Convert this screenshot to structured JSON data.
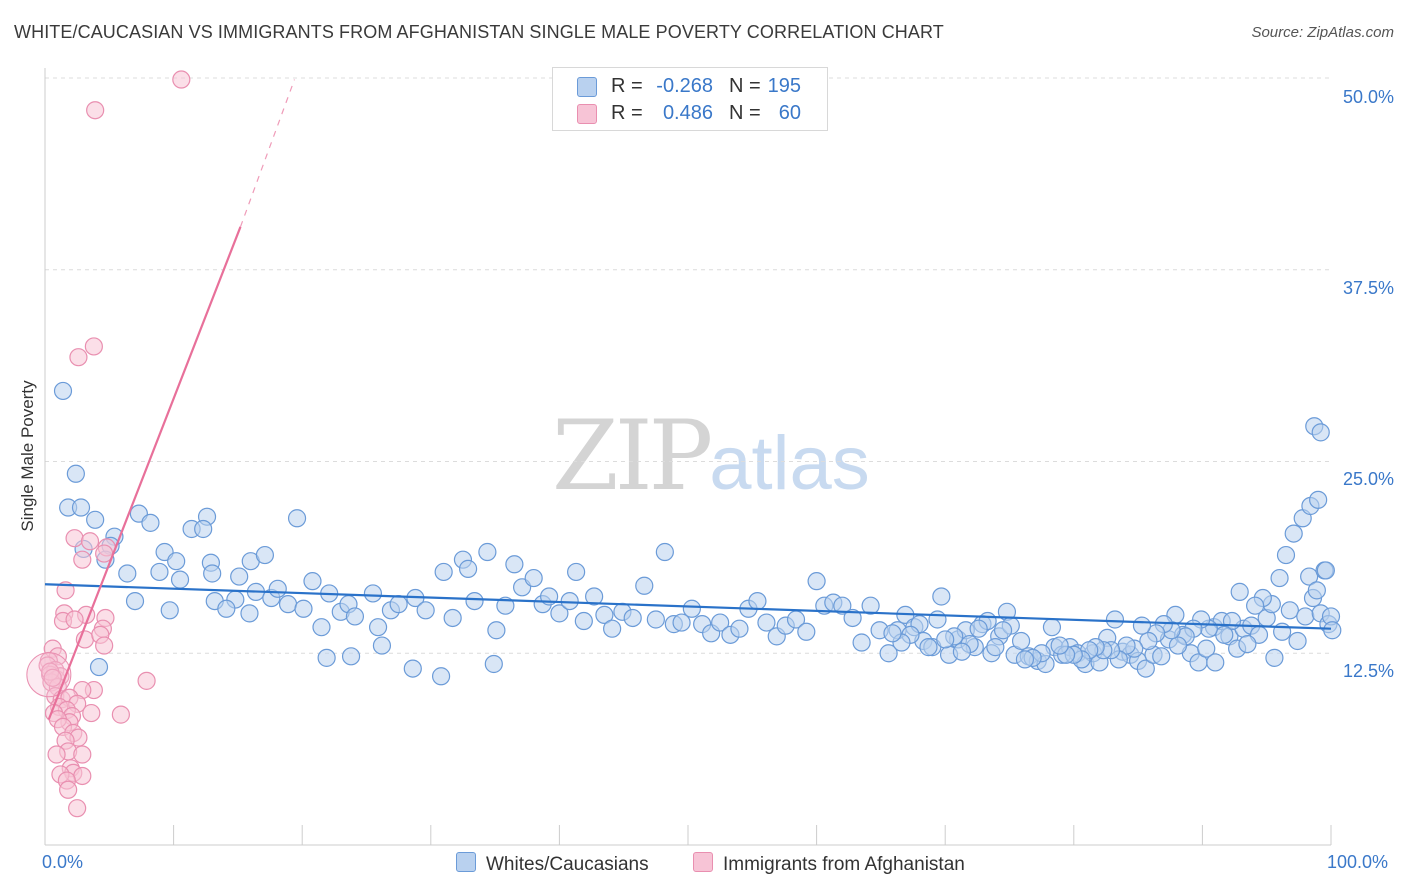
{
  "title": "WHITE/CAUCASIAN VS IMMIGRANTS FROM AFGHANISTAN SINGLE MALE POVERTY CORRELATION CHART",
  "source": "Source: ZipAtlas.com",
  "watermark": {
    "zip": "ZIP",
    "atlas": "atlas"
  },
  "colors": {
    "blue": "#6b9bd8",
    "blue_fill": "#b9d1ef",
    "blue_line": "#2a72c9",
    "pink": "#e98fb0",
    "pink_fill": "#f7c4d6",
    "pink_line": "#e8709a",
    "tick_text": "#3a78c9"
  },
  "legend": {
    "rows": [
      {
        "r_label": "R =",
        "r_value": "-0.268",
        "n_label": "N =",
        "n_value": "195"
      },
      {
        "r_label": "R =",
        "r_value": "0.486",
        "n_label": "N =",
        "n_value": "60"
      }
    ]
  },
  "chart_data": {
    "type": "scatter",
    "title": "WHITE/CAUCASIAN VS IMMIGRANTS FROM AFGHANISTAN SINGLE MALE POVERTY CORRELATION CHART",
    "xlabel": "",
    "ylabel": "Single Male Poverty",
    "xlim": [
      0,
      100
    ],
    "ylim": [
      0,
      50
    ],
    "x_tick_labels": [
      "0.0%",
      "100.0%"
    ],
    "y_ticks": [
      12.5,
      25.0,
      37.5,
      50.0
    ],
    "y_tick_labels": [
      "12.5%",
      "25.0%",
      "37.5%",
      "50.0%"
    ],
    "grid": "horizontal dashed",
    "legend_position": "bottom",
    "series": [
      {
        "name": "Whites/Caucasians",
        "color": "#6b9bd8",
        "trend": {
          "x": [
            0,
            100
          ],
          "y": [
            17.0,
            14.1
          ]
        },
        "points": [
          [
            1.4,
            29.6
          ],
          [
            2.4,
            24.2
          ],
          [
            1.8,
            22.0
          ],
          [
            2.8,
            22.0
          ],
          [
            3.9,
            21.2
          ],
          [
            5.4,
            20.1
          ],
          [
            7.3,
            21.6
          ],
          [
            8.2,
            21.0
          ],
          [
            3.0,
            19.3
          ],
          [
            5.1,
            19.5
          ],
          [
            4.7,
            18.6
          ],
          [
            9.3,
            19.1
          ],
          [
            10.2,
            18.5
          ],
          [
            11.4,
            20.6
          ],
          [
            12.6,
            21.4
          ],
          [
            12.9,
            18.4
          ],
          [
            6.4,
            17.7
          ],
          [
            8.9,
            17.8
          ],
          [
            10.5,
            17.3
          ],
          [
            13.0,
            17.7
          ],
          [
            15.1,
            17.5
          ],
          [
            16.0,
            18.5
          ],
          [
            14.8,
            16.0
          ],
          [
            7.0,
            15.9
          ],
          [
            9.7,
            15.3
          ],
          [
            13.2,
            15.9
          ],
          [
            14.1,
            15.4
          ],
          [
            15.9,
            15.1
          ],
          [
            16.4,
            16.5
          ],
          [
            17.1,
            18.9
          ],
          [
            17.6,
            16.1
          ],
          [
            18.1,
            16.7
          ],
          [
            18.9,
            15.7
          ],
          [
            20.1,
            15.4
          ],
          [
            20.8,
            17.2
          ],
          [
            21.5,
            14.2
          ],
          [
            22.1,
            16.4
          ],
          [
            23.0,
            15.2
          ],
          [
            23.6,
            15.7
          ],
          [
            24.1,
            14.9
          ],
          [
            25.5,
            16.4
          ],
          [
            25.9,
            14.2
          ],
          [
            26.9,
            15.3
          ],
          [
            27.5,
            15.7
          ],
          [
            28.8,
            16.1
          ],
          [
            29.6,
            15.3
          ],
          [
            31.0,
            17.8
          ],
          [
            31.7,
            14.8
          ],
          [
            32.5,
            18.6
          ],
          [
            33.4,
            15.9
          ],
          [
            34.4,
            19.1
          ],
          [
            35.1,
            14.0
          ],
          [
            35.8,
            15.6
          ],
          [
            36.5,
            18.3
          ],
          [
            37.1,
            16.8
          ],
          [
            38.0,
            17.4
          ],
          [
            38.7,
            15.7
          ],
          [
            39.2,
            16.2
          ],
          [
            40.0,
            15.1
          ],
          [
            40.8,
            15.9
          ],
          [
            41.3,
            17.8
          ],
          [
            41.9,
            14.6
          ],
          [
            42.7,
            16.2
          ],
          [
            43.5,
            15.0
          ],
          [
            44.1,
            14.1
          ],
          [
            44.9,
            15.2
          ],
          [
            45.7,
            14.8
          ],
          [
            46.6,
            16.9
          ],
          [
            47.5,
            14.7
          ],
          [
            48.2,
            19.1
          ],
          [
            48.9,
            14.4
          ],
          [
            49.5,
            14.5
          ],
          [
            50.3,
            15.4
          ],
          [
            51.1,
            14.4
          ],
          [
            51.8,
            13.8
          ],
          [
            52.5,
            14.5
          ],
          [
            53.3,
            13.7
          ],
          [
            54.0,
            14.1
          ],
          [
            54.7,
            15.4
          ],
          [
            55.4,
            15.9
          ],
          [
            56.1,
            14.5
          ],
          [
            56.9,
            13.6
          ],
          [
            57.6,
            14.3
          ],
          [
            58.4,
            14.7
          ],
          [
            59.2,
            13.9
          ],
          [
            60.0,
            17.2
          ],
          [
            60.6,
            15.6
          ],
          [
            61.3,
            15.8
          ],
          [
            62.0,
            15.6
          ],
          [
            62.8,
            14.8
          ],
          [
            63.5,
            13.2
          ],
          [
            64.2,
            15.6
          ],
          [
            64.9,
            14.0
          ],
          [
            65.6,
            12.5
          ],
          [
            66.3,
            14.0
          ],
          [
            66.9,
            15.0
          ],
          [
            67.6,
            14.2
          ],
          [
            68.3,
            13.3
          ],
          [
            69.0,
            12.9
          ],
          [
            69.7,
            16.2
          ],
          [
            70.3,
            12.4
          ],
          [
            71.0,
            13.4
          ],
          [
            71.6,
            14.0
          ],
          [
            72.3,
            12.9
          ],
          [
            72.9,
            14.4
          ],
          [
            73.6,
            12.5
          ],
          [
            74.2,
            13.6
          ],
          [
            74.8,
            15.2
          ],
          [
            75.4,
            12.4
          ],
          [
            75.9,
            13.3
          ],
          [
            76.5,
            12.3
          ],
          [
            77.2,
            12.0
          ],
          [
            77.8,
            11.8
          ],
          [
            78.5,
            12.9
          ],
          [
            79.1,
            12.4
          ],
          [
            79.7,
            12.9
          ],
          [
            80.3,
            12.5
          ],
          [
            80.9,
            11.8
          ],
          [
            81.5,
            12.5
          ],
          [
            82.0,
            11.9
          ],
          [
            82.6,
            13.5
          ],
          [
            83.2,
            14.7
          ],
          [
            83.8,
            12.6
          ],
          [
            84.4,
            12.4
          ],
          [
            85.0,
            12.0
          ],
          [
            85.6,
            11.5
          ],
          [
            86.2,
            12.4
          ],
          [
            86.8,
            12.3
          ],
          [
            87.4,
            13.4
          ],
          [
            87.9,
            15.0
          ],
          [
            88.5,
            13.7
          ],
          [
            89.1,
            12.5
          ],
          [
            89.7,
            11.9
          ],
          [
            90.3,
            12.8
          ],
          [
            90.9,
            14.2
          ],
          [
            91.5,
            14.6
          ],
          [
            92.1,
            13.6
          ],
          [
            92.7,
            12.8
          ],
          [
            93.2,
            14.1
          ],
          [
            93.8,
            14.3
          ],
          [
            94.4,
            13.7
          ],
          [
            95.0,
            14.8
          ],
          [
            95.6,
            12.2
          ],
          [
            96.2,
            13.9
          ],
          [
            96.8,
            15.3
          ],
          [
            97.4,
            13.3
          ],
          [
            98.0,
            14.9
          ],
          [
            98.6,
            16.1
          ],
          [
            99.2,
            15.1
          ],
          [
            99.8,
            14.4
          ],
          [
            100.0,
            14.9
          ],
          [
            98.3,
            17.5
          ],
          [
            98.9,
            16.6
          ],
          [
            99.5,
            17.9
          ],
          [
            100.1,
            14.0
          ],
          [
            97.1,
            20.3
          ],
          [
            96.5,
            18.9
          ],
          [
            97.8,
            21.3
          ],
          [
            98.4,
            22.1
          ],
          [
            99.0,
            22.5
          ],
          [
            99.6,
            17.9
          ],
          [
            96.0,
            17.4
          ],
          [
            95.4,
            15.7
          ],
          [
            94.7,
            16.1
          ],
          [
            94.1,
            15.6
          ],
          [
            93.5,
            13.1
          ],
          [
            92.9,
            16.5
          ],
          [
            92.3,
            14.6
          ],
          [
            91.7,
            13.7
          ],
          [
            91.0,
            11.9
          ],
          [
            90.5,
            14.1
          ],
          [
            89.9,
            14.7
          ],
          [
            89.3,
            14.1
          ],
          [
            88.7,
            13.6
          ],
          [
            88.1,
            13.0
          ],
          [
            87.6,
            14.0
          ],
          [
            87.0,
            14.4
          ],
          [
            86.4,
            13.8
          ],
          [
            85.8,
            13.3
          ],
          [
            85.3,
            14.3
          ],
          [
            84.7,
            12.8
          ],
          [
            84.1,
            13.0
          ],
          [
            83.5,
            12.1
          ],
          [
            82.9,
            12.7
          ],
          [
            82.3,
            12.7
          ],
          [
            81.7,
            12.9
          ],
          [
            81.2,
            12.7
          ],
          [
            80.6,
            12.1
          ],
          [
            80.0,
            12.4
          ],
          [
            79.4,
            12.4
          ],
          [
            78.9,
            13.0
          ],
          [
            78.3,
            14.2
          ],
          [
            77.5,
            12.5
          ],
          [
            76.8,
            12.2
          ],
          [
            76.2,
            12.1
          ],
          [
            75.1,
            14.3
          ],
          [
            74.5,
            14.0
          ],
          [
            73.9,
            12.9
          ],
          [
            73.3,
            14.6
          ],
          [
            72.6,
            14.1
          ],
          [
            71.9,
            13.1
          ],
          [
            71.3,
            12.6
          ],
          [
            70.7,
            13.6
          ],
          [
            70.0,
            13.4
          ],
          [
            69.4,
            14.7
          ],
          [
            68.7,
            12.9
          ],
          [
            68.0,
            14.4
          ],
          [
            67.3,
            13.7
          ],
          [
            66.6,
            13.2
          ],
          [
            65.9,
            13.8
          ],
          [
            98.7,
            27.3
          ],
          [
            99.2,
            26.9
          ],
          [
            4.2,
            11.6
          ],
          [
            28.6,
            11.5
          ],
          [
            30.8,
            11.0
          ],
          [
            34.9,
            11.8
          ],
          [
            23.8,
            12.3
          ],
          [
            26.2,
            13.0
          ],
          [
            21.9,
            12.2
          ],
          [
            32.9,
            18.0
          ],
          [
            12.3,
            20.6
          ],
          [
            19.6,
            21.3
          ]
        ]
      },
      {
        "name": "Immigrants from Afghanistan",
        "color": "#e98fb0",
        "trend": {
          "x": [
            0.3,
            15.2
          ],
          "y": [
            8.2,
            40.3
          ],
          "dashed_extension": {
            "x": [
              15.2,
              19.4
            ],
            "y": [
              40.3,
              49.9
            ]
          }
        },
        "points": [
          [
            10.6,
            49.9
          ],
          [
            3.9,
            47.9
          ],
          [
            3.8,
            32.5
          ],
          [
            2.6,
            31.8
          ],
          [
            2.3,
            20.0
          ],
          [
            3.5,
            19.8
          ],
          [
            4.8,
            19.4
          ],
          [
            2.9,
            18.6
          ],
          [
            4.6,
            19.0
          ],
          [
            1.6,
            16.6
          ],
          [
            1.5,
            15.1
          ],
          [
            3.2,
            15.0
          ],
          [
            1.4,
            14.6
          ],
          [
            2.3,
            14.7
          ],
          [
            4.7,
            14.8
          ],
          [
            4.5,
            14.1
          ],
          [
            3.1,
            13.4
          ],
          [
            4.3,
            13.7
          ],
          [
            4.6,
            13.0
          ],
          [
            0.6,
            12.8
          ],
          [
            1.0,
            12.3
          ],
          [
            0.3,
            12.0
          ],
          [
            0.2,
            11.7
          ],
          [
            0.8,
            11.4
          ],
          [
            0.4,
            11.1
          ],
          [
            0.9,
            10.8
          ],
          [
            1.2,
            11.0
          ],
          [
            0.5,
            10.6
          ],
          [
            1.0,
            10.3
          ],
          [
            7.9,
            10.7
          ],
          [
            3.8,
            10.1
          ],
          [
            2.9,
            10.1
          ],
          [
            0.8,
            9.7
          ],
          [
            1.3,
            9.5
          ],
          [
            1.9,
            9.6
          ],
          [
            2.5,
            9.2
          ],
          [
            1.1,
            9.0
          ],
          [
            1.7,
            8.8
          ],
          [
            0.7,
            8.6
          ],
          [
            2.1,
            8.4
          ],
          [
            3.6,
            8.6
          ],
          [
            5.9,
            8.5
          ],
          [
            1.9,
            8.0
          ],
          [
            1.0,
            8.2
          ],
          [
            1.4,
            7.7
          ],
          [
            2.2,
            7.3
          ],
          [
            2.6,
            7.0
          ],
          [
            1.6,
            6.8
          ],
          [
            1.8,
            6.1
          ],
          [
            0.9,
            5.9
          ],
          [
            2.9,
            5.9
          ],
          [
            2.0,
            5.0
          ],
          [
            2.2,
            4.7
          ],
          [
            1.2,
            4.6
          ],
          [
            2.9,
            4.5
          ],
          [
            1.7,
            4.2
          ],
          [
            1.8,
            3.6
          ],
          [
            2.5,
            2.4
          ],
          [
            0.4,
            11.3
          ],
          [
            0.6,
            10.9
          ]
        ]
      }
    ]
  }
}
